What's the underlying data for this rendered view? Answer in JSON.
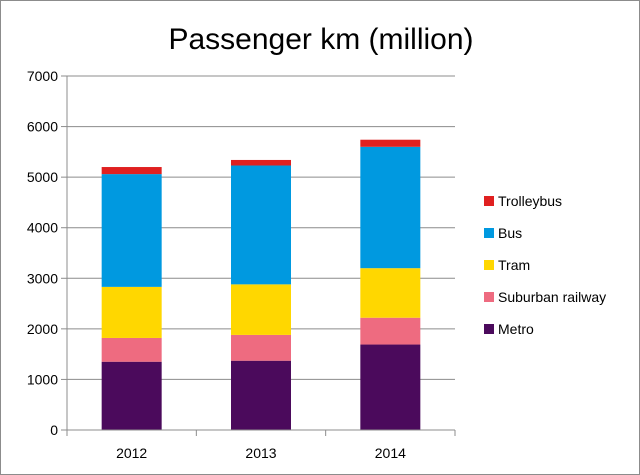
{
  "chart_data": {
    "type": "bar",
    "stacked": true,
    "title": "Passenger km (million)",
    "xlabel": "",
    "ylabel": "",
    "categories": [
      "2012",
      "2013",
      "2014"
    ],
    "ylim": [
      0,
      7000
    ],
    "yticks": [
      0,
      1000,
      2000,
      3000,
      4000,
      5000,
      6000,
      7000
    ],
    "grid": true,
    "legend_position": "right",
    "series": [
      {
        "name": "Metro",
        "color": "#4b0a5c",
        "values": [
          1350,
          1370,
          1690
        ]
      },
      {
        "name": "Suburban railway",
        "color": "#ee6b80",
        "values": [
          470,
          510,
          530
        ]
      },
      {
        "name": "Tram",
        "color": "#ffd700",
        "values": [
          1010,
          1000,
          980
        ]
      },
      {
        "name": "Bus",
        "color": "#0099e0",
        "values": [
          2230,
          2350,
          2400
        ]
      },
      {
        "name": "Trolleybus",
        "color": "#e02020",
        "values": [
          140,
          110,
          140
        ]
      }
    ]
  }
}
